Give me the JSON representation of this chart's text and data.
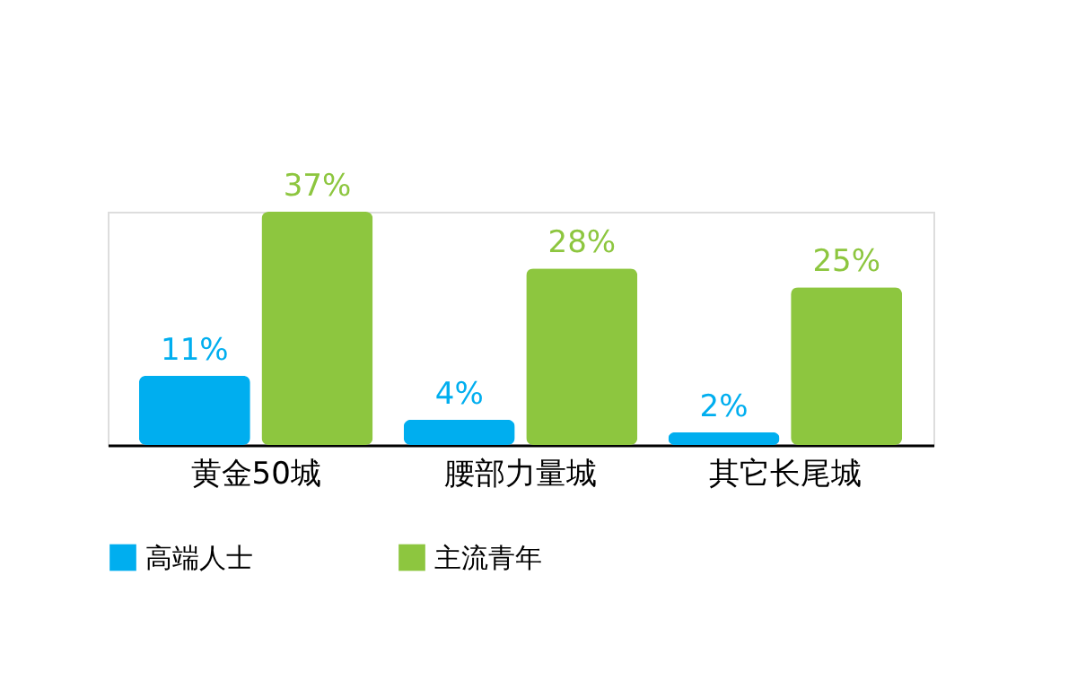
{
  "chart_data": {
    "type": "bar",
    "categories": [
      "黄金50城",
      "腰部力量城",
      "其它长尾城"
    ],
    "series": [
      {
        "name": "高端人士",
        "color": "#00aeef",
        "values": [
          11,
          4,
          2
        ],
        "value_labels": [
          "11%",
          "4%",
          "2%"
        ]
      },
      {
        "name": "主流青年",
        "color": "#8dc63f",
        "values": [
          37,
          28,
          25
        ],
        "value_labels": [
          "37%",
          "28%",
          "25%"
        ]
      }
    ],
    "legend": "bottom",
    "grid": false
  }
}
